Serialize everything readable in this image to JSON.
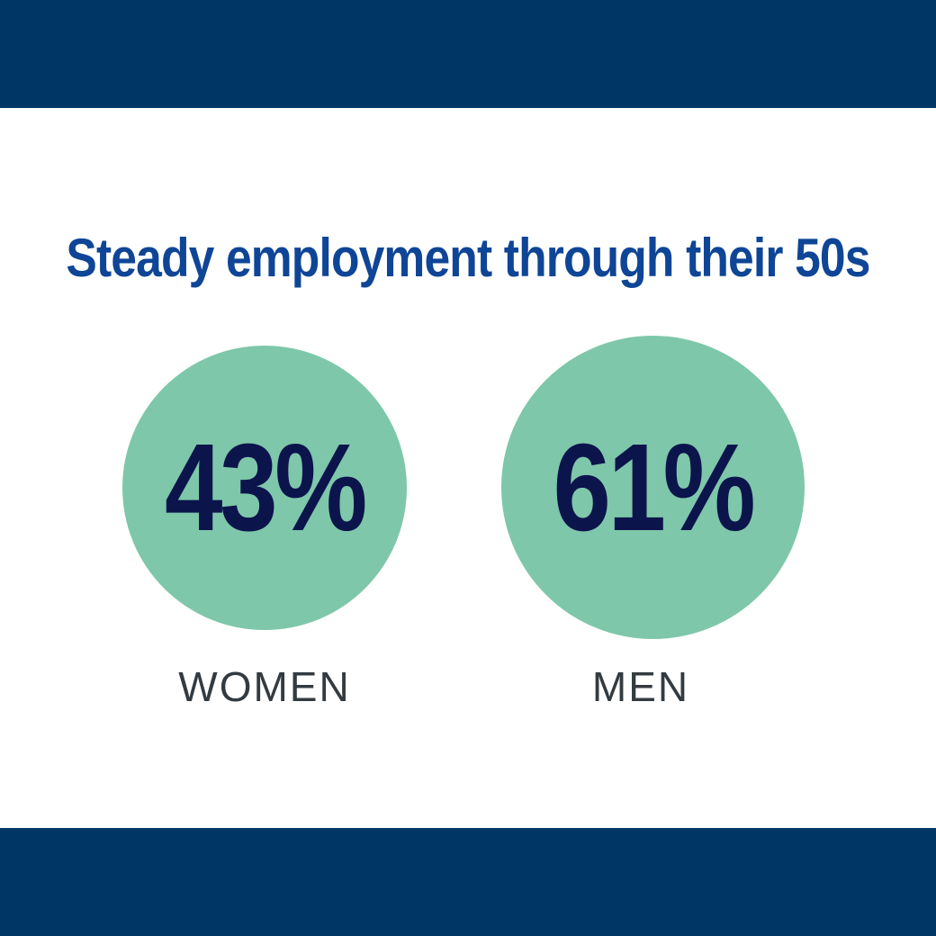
{
  "colors": {
    "band": "#003665",
    "background": "#ffffff",
    "title": "#0f4596",
    "circle": "#7ec7aa",
    "value": "#0c144c",
    "label": "#333b40"
  },
  "chart_data": {
    "type": "bar",
    "title": "Steady employment through their 50s",
    "categories": [
      "WOMEN",
      "MEN"
    ],
    "values": [
      43,
      61
    ],
    "value_labels": [
      "43%",
      "61%"
    ],
    "unit": "%"
  }
}
